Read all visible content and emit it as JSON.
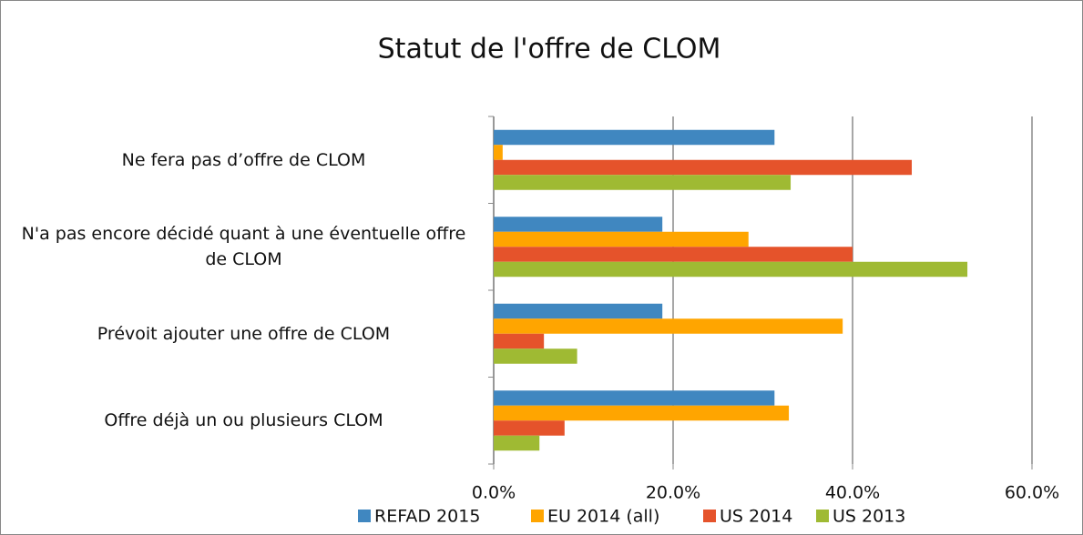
{
  "chart_data": {
    "type": "hbar",
    "title": "Statut de l'offre de CLOM",
    "categories": [
      "Ne fera pas d’offre de CLOM",
      "N'a pas encore décidé quant à une éventuelle offre de CLOM",
      "Prévoit ajouter une offre de CLOM",
      "Offre déjà un ou plusieurs CLOM"
    ],
    "series": [
      {
        "name": "REFAD 2015",
        "color": "#4087c0",
        "values": [
          31.3,
          18.8,
          18.8,
          31.3
        ]
      },
      {
        "name": "EU 2014 (all)",
        "color": "#ffa500",
        "values": [
          1.0,
          28.4,
          38.9,
          32.9
        ]
      },
      {
        "name": "US 2014",
        "color": "#e5532b",
        "values": [
          46.6,
          40.0,
          5.6,
          7.9
        ]
      },
      {
        "name": "US 2013",
        "color": "#9fba33",
        "values": [
          33.1,
          52.8,
          9.3,
          5.1
        ]
      }
    ],
    "xlim": [
      0,
      60
    ],
    "xticks": [
      {
        "value": 0,
        "label": "0.0%"
      },
      {
        "value": 20,
        "label": "20.0%"
      },
      {
        "value": 40,
        "label": "40.0%"
      },
      {
        "value": 60,
        "label": "60.0%"
      }
    ],
    "grid": true,
    "legend": "bottom"
  }
}
